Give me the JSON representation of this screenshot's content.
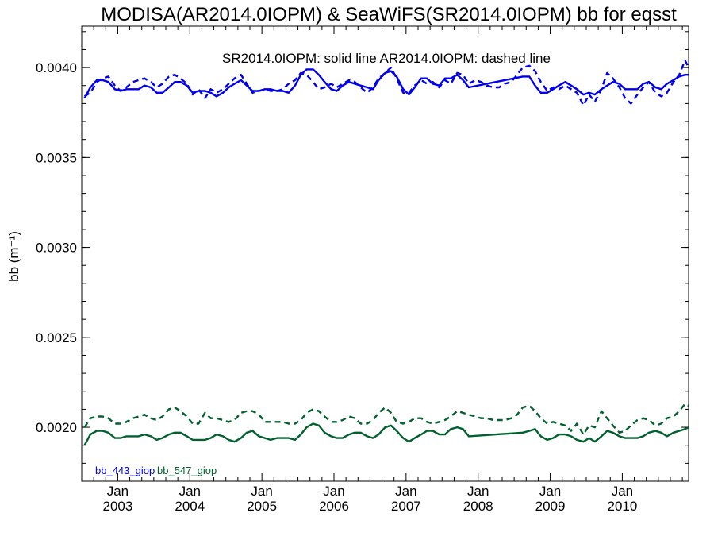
{
  "chart_data": {
    "type": "line",
    "title": "MODISA(AR2014.0IOPM) & SeaWiFS(SR2014.0IOPM)  bb for eqsst",
    "subtitle": "SR2014.0IOPM: solid line   AR2014.0IOPM: dashed line",
    "ylabel": "bb (m⁻¹)",
    "ylim": [
      0.0017,
      0.00423
    ],
    "xlim": [
      2002.5,
      2010.92
    ],
    "yticks": [
      0.002,
      0.0025,
      0.003,
      0.0035,
      0.004
    ],
    "ytick_labels": [
      "0.0020",
      "0.0025",
      "0.0030",
      "0.0035",
      "0.0040"
    ],
    "xticks": [
      2003.0,
      2004.0,
      2005.0,
      2006.0,
      2007.0,
      2008.0,
      2009.0,
      2010.0
    ],
    "xtick_labels_top": [
      "Jan",
      "Jan",
      "Jan",
      "Jan",
      "Jan",
      "Jan",
      "Jan",
      "Jan"
    ],
    "xtick_labels_bottom": [
      "2003",
      "2004",
      "2005",
      "2006",
      "2007",
      "2008",
      "2009",
      "2010"
    ],
    "grid": false,
    "legend": {
      "position": "bottom-left",
      "entries": [
        "bb_443_giop",
        "bb_547_giop"
      ]
    },
    "series": [
      {
        "name": "bb_443_giop",
        "product": "SR2014.0IOPM",
        "style": "solid",
        "color": "#0000ee",
        "x": [
          2002.54,
          2002.62,
          2002.71,
          2002.79,
          2002.87,
          2002.96,
          2003.04,
          2003.12,
          2003.21,
          2003.29,
          2003.37,
          2003.46,
          2003.54,
          2003.62,
          2003.71,
          2003.79,
          2003.87,
          2003.96,
          2004.04,
          2004.12,
          2004.21,
          2004.29,
          2004.37,
          2004.46,
          2004.54,
          2004.62,
          2004.71,
          2004.79,
          2004.87,
          2004.96,
          2005.04,
          2005.12,
          2005.21,
          2005.29,
          2005.37,
          2005.46,
          2005.54,
          2005.62,
          2005.71,
          2005.79,
          2005.87,
          2005.96,
          2006.04,
          2006.12,
          2006.21,
          2006.29,
          2006.37,
          2006.46,
          2006.54,
          2006.62,
          2006.71,
          2006.79,
          2006.87,
          2006.96,
          2007.04,
          2007.12,
          2007.21,
          2007.29,
          2007.37,
          2007.46,
          2007.54,
          2007.62,
          2007.71,
          2007.79,
          2007.87,
          2008.62,
          2008.71,
          2008.79,
          2008.87,
          2008.96,
          2009.04,
          2009.12,
          2009.21,
          2009.29,
          2009.37,
          2009.46,
          2009.54,
          2009.62,
          2009.71,
          2009.79,
          2009.87,
          2009.96,
          2010.04,
          2010.12,
          2010.21,
          2010.29,
          2010.37,
          2010.46,
          2010.54,
          2010.62,
          2010.71,
          2010.79,
          2010.87,
          2010.92
        ],
        "y": [
          0.00383,
          0.00389,
          0.00393,
          0.00393,
          0.00392,
          0.00388,
          0.00387,
          0.00388,
          0.00388,
          0.00388,
          0.0039,
          0.00389,
          0.00386,
          0.00386,
          0.00389,
          0.00392,
          0.00392,
          0.0039,
          0.00386,
          0.00387,
          0.00387,
          0.00386,
          0.00384,
          0.00386,
          0.00389,
          0.00391,
          0.00393,
          0.0039,
          0.00387,
          0.00387,
          0.00388,
          0.00388,
          0.00387,
          0.00387,
          0.00386,
          0.0039,
          0.00396,
          0.00399,
          0.00399,
          0.00396,
          0.00392,
          0.00388,
          0.00387,
          0.0039,
          0.00392,
          0.00391,
          0.0039,
          0.00389,
          0.00388,
          0.00393,
          0.00397,
          0.00398,
          0.00395,
          0.00388,
          0.00385,
          0.00389,
          0.00394,
          0.00394,
          0.00391,
          0.0039,
          0.00394,
          0.00394,
          0.00396,
          0.00393,
          0.00389,
          0.00395,
          0.00395,
          0.0039,
          0.00386,
          0.00386,
          0.00388,
          0.0039,
          0.00392,
          0.0039,
          0.00388,
          0.00385,
          0.00386,
          0.00385,
          0.00388,
          0.0039,
          0.00392,
          0.00391,
          0.00388,
          0.00388,
          0.00388,
          0.00391,
          0.00392,
          0.00389,
          0.00388,
          0.00391,
          0.00393,
          0.00395,
          0.00396,
          0.00396
        ]
      },
      {
        "name": "bb_443_giop",
        "product": "AR2014.0IOPM",
        "style": "dashed",
        "color": "#0000ee",
        "x": [
          2002.54,
          2002.62,
          2002.71,
          2002.79,
          2002.87,
          2002.96,
          2003.04,
          2003.12,
          2003.21,
          2003.29,
          2003.37,
          2003.46,
          2003.54,
          2003.62,
          2003.71,
          2003.79,
          2003.87,
          2003.96,
          2004.04,
          2004.12,
          2004.21,
          2004.29,
          2004.37,
          2004.46,
          2004.54,
          2004.62,
          2004.71,
          2004.79,
          2004.87,
          2004.96,
          2005.04,
          2005.12,
          2005.21,
          2005.29,
          2005.37,
          2005.46,
          2005.54,
          2005.62,
          2005.71,
          2005.79,
          2005.87,
          2005.96,
          2006.04,
          2006.12,
          2006.21,
          2006.29,
          2006.37,
          2006.46,
          2006.54,
          2006.62,
          2006.71,
          2006.79,
          2006.87,
          2006.96,
          2007.04,
          2007.12,
          2007.21,
          2007.29,
          2007.37,
          2007.46,
          2007.54,
          2007.62,
          2007.71,
          2007.79,
          2007.87,
          2007.96,
          2008.04,
          2008.12,
          2008.21,
          2008.29,
          2008.37,
          2008.46,
          2008.54,
          2008.62,
          2008.71,
          2008.79,
          2008.87,
          2008.96,
          2009.04,
          2009.12,
          2009.21,
          2009.29,
          2009.37,
          2009.46,
          2009.54,
          2009.62,
          2009.71,
          2009.79,
          2009.87,
          2009.96,
          2010.04,
          2010.12,
          2010.21,
          2010.29,
          2010.37,
          2010.46,
          2010.54,
          2010.62,
          2010.71,
          2010.79,
          2010.87,
          2010.92
        ],
        "y": [
          0.00384,
          0.00386,
          0.00392,
          0.00394,
          0.00395,
          0.0039,
          0.00387,
          0.00389,
          0.00392,
          0.00393,
          0.00394,
          0.00392,
          0.00389,
          0.00391,
          0.00395,
          0.00396,
          0.00394,
          0.00391,
          0.00385,
          0.00388,
          0.00383,
          0.00388,
          0.00386,
          0.00388,
          0.00391,
          0.00394,
          0.00396,
          0.00391,
          0.00386,
          0.00387,
          0.00388,
          0.00387,
          0.00387,
          0.00388,
          0.00391,
          0.00393,
          0.00397,
          0.00396,
          0.00392,
          0.00388,
          0.00389,
          0.00391,
          0.00389,
          0.00391,
          0.00393,
          0.00392,
          0.00389,
          0.00386,
          0.00389,
          0.00394,
          0.00397,
          0.004,
          0.00394,
          0.00386,
          0.00386,
          0.0039,
          0.00393,
          0.00391,
          0.00392,
          0.00389,
          0.00393,
          0.00391,
          0.00397,
          0.00396,
          0.00391,
          0.00393,
          0.00392,
          0.0039,
          0.00389,
          0.00389,
          0.00391,
          0.00392,
          0.00396,
          0.004,
          0.00401,
          0.00398,
          0.00392,
          0.00387,
          0.00389,
          0.00388,
          0.0039,
          0.00388,
          0.00386,
          0.00379,
          0.00385,
          0.00381,
          0.00388,
          0.00397,
          0.00394,
          0.00389,
          0.00383,
          0.0038,
          0.00385,
          0.00389,
          0.00392,
          0.00386,
          0.00384,
          0.00386,
          0.00392,
          0.00396,
          0.00404,
          0.004
        ]
      },
      {
        "name": "bb_547_giop",
        "product": "SR2014.0IOPM",
        "style": "solid",
        "color": "#00602e",
        "x": [
          2002.54,
          2002.62,
          2002.71,
          2002.79,
          2002.87,
          2002.96,
          2003.04,
          2003.12,
          2003.21,
          2003.29,
          2003.37,
          2003.46,
          2003.54,
          2003.62,
          2003.71,
          2003.79,
          2003.87,
          2003.96,
          2004.04,
          2004.12,
          2004.21,
          2004.29,
          2004.37,
          2004.46,
          2004.54,
          2004.62,
          2004.71,
          2004.79,
          2004.87,
          2004.96,
          2005.04,
          2005.12,
          2005.21,
          2005.29,
          2005.37,
          2005.46,
          2005.54,
          2005.62,
          2005.71,
          2005.79,
          2005.87,
          2005.96,
          2006.04,
          2006.12,
          2006.21,
          2006.29,
          2006.37,
          2006.46,
          2006.54,
          2006.62,
          2006.71,
          2006.79,
          2006.87,
          2006.96,
          2007.04,
          2007.12,
          2007.21,
          2007.29,
          2007.37,
          2007.46,
          2007.54,
          2007.62,
          2007.71,
          2007.79,
          2007.87,
          2008.62,
          2008.71,
          2008.79,
          2008.87,
          2008.96,
          2009.04,
          2009.12,
          2009.21,
          2009.29,
          2009.37,
          2009.46,
          2009.54,
          2009.62,
          2009.71,
          2009.79,
          2009.87,
          2009.96,
          2010.04,
          2010.12,
          2010.21,
          2010.29,
          2010.37,
          2010.46,
          2010.54,
          2010.62,
          2010.71,
          2010.79,
          2010.87,
          2010.92
        ],
        "y": [
          0.0019,
          0.00196,
          0.00198,
          0.00198,
          0.00197,
          0.00194,
          0.00194,
          0.00195,
          0.00195,
          0.00195,
          0.00196,
          0.00195,
          0.00193,
          0.00194,
          0.00196,
          0.00197,
          0.00197,
          0.00195,
          0.00193,
          0.00193,
          0.00193,
          0.00194,
          0.00196,
          0.00195,
          0.00193,
          0.00192,
          0.00194,
          0.00197,
          0.00198,
          0.00195,
          0.00194,
          0.00193,
          0.00194,
          0.00194,
          0.00194,
          0.00193,
          0.00196,
          0.002,
          0.00202,
          0.00201,
          0.00197,
          0.00195,
          0.00194,
          0.00194,
          0.00196,
          0.00197,
          0.00197,
          0.00195,
          0.00194,
          0.00196,
          0.002,
          0.00201,
          0.00198,
          0.00194,
          0.00192,
          0.00194,
          0.00196,
          0.00198,
          0.00198,
          0.00196,
          0.00196,
          0.00199,
          0.002,
          0.00199,
          0.00195,
          0.00197,
          0.00198,
          0.00199,
          0.00195,
          0.00193,
          0.00194,
          0.00196,
          0.00196,
          0.00195,
          0.00193,
          0.00192,
          0.00194,
          0.00192,
          0.00195,
          0.00198,
          0.00197,
          0.00195,
          0.00194,
          0.00194,
          0.00194,
          0.00195,
          0.00197,
          0.00198,
          0.00197,
          0.00195,
          0.00197,
          0.00198,
          0.00199,
          0.002
        ]
      },
      {
        "name": "bb_547_giop",
        "product": "AR2014.0IOPM",
        "style": "dashed",
        "color": "#00602e",
        "x": [
          2002.54,
          2002.62,
          2002.71,
          2002.79,
          2002.87,
          2002.96,
          2003.04,
          2003.12,
          2003.21,
          2003.29,
          2003.37,
          2003.46,
          2003.54,
          2003.62,
          2003.71,
          2003.79,
          2003.87,
          2003.96,
          2004.04,
          2004.12,
          2004.21,
          2004.29,
          2004.37,
          2004.46,
          2004.54,
          2004.62,
          2004.71,
          2004.79,
          2004.87,
          2004.96,
          2005.04,
          2005.12,
          2005.21,
          2005.29,
          2005.37,
          2005.46,
          2005.54,
          2005.62,
          2005.71,
          2005.79,
          2005.87,
          2005.96,
          2006.04,
          2006.12,
          2006.21,
          2006.29,
          2006.37,
          2006.46,
          2006.54,
          2006.62,
          2006.71,
          2006.79,
          2006.87,
          2006.96,
          2007.04,
          2007.12,
          2007.21,
          2007.29,
          2007.37,
          2007.46,
          2007.54,
          2007.62,
          2007.71,
          2007.79,
          2007.87,
          2007.96,
          2008.04,
          2008.12,
          2008.21,
          2008.29,
          2008.37,
          2008.46,
          2008.54,
          2008.62,
          2008.71,
          2008.79,
          2008.87,
          2008.96,
          2009.04,
          2009.12,
          2009.21,
          2009.29,
          2009.37,
          2009.46,
          2009.54,
          2009.62,
          2009.71,
          2009.79,
          2009.87,
          2009.96,
          2010.04,
          2010.12,
          2010.21,
          2010.29,
          2010.37,
          2010.46,
          2010.54,
          2010.62,
          2010.71,
          2010.79,
          2010.87,
          2010.92
        ],
        "y": [
          0.002,
          0.00205,
          0.00206,
          0.00206,
          0.00205,
          0.00202,
          0.00202,
          0.00203,
          0.00205,
          0.00206,
          0.00207,
          0.00205,
          0.00204,
          0.00206,
          0.0021,
          0.00211,
          0.00209,
          0.00206,
          0.00202,
          0.00202,
          0.00208,
          0.00205,
          0.00205,
          0.00204,
          0.00203,
          0.00204,
          0.00208,
          0.00209,
          0.00209,
          0.00207,
          0.00203,
          0.00203,
          0.00203,
          0.00203,
          0.00202,
          0.00202,
          0.00204,
          0.00208,
          0.0021,
          0.00209,
          0.00206,
          0.00203,
          0.00203,
          0.00204,
          0.00206,
          0.00205,
          0.00202,
          0.00202,
          0.00204,
          0.00208,
          0.00211,
          0.00208,
          0.00203,
          0.00202,
          0.00203,
          0.00205,
          0.00205,
          0.00203,
          0.00202,
          0.00203,
          0.00204,
          0.00206,
          0.00209,
          0.00208,
          0.00207,
          0.00206,
          0.00205,
          0.00205,
          0.00204,
          0.00204,
          0.00204,
          0.00205,
          0.00207,
          0.00211,
          0.00212,
          0.00209,
          0.00205,
          0.00202,
          0.00203,
          0.00202,
          0.00201,
          0.00198,
          0.00202,
          0.00196,
          0.00201,
          0.002,
          0.00209,
          0.00205,
          0.00201,
          0.00197,
          0.00198,
          0.00201,
          0.00204,
          0.00205,
          0.00204,
          0.00201,
          0.00202,
          0.00205,
          0.00206,
          0.00209,
          0.00213,
          0.00212
        ]
      }
    ]
  },
  "legend_labels": {
    "first": "bb_443_giop",
    "second": "bb_547_giop"
  },
  "colors": {
    "blue": "#0000ee",
    "green": "#00602e",
    "axis": "#000000"
  }
}
